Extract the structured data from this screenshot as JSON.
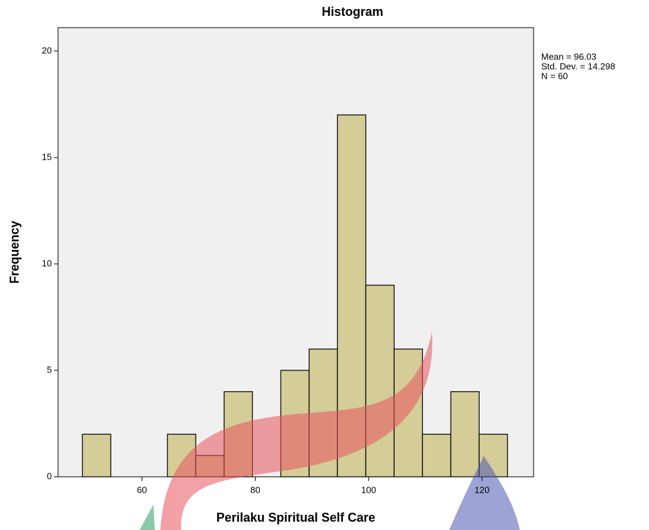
{
  "chart_data": {
    "type": "histogram",
    "title": "Histogram",
    "x_label": "Perilaku Spiritual Self Care",
    "y_label": "Frequency",
    "bins": [
      49.5,
      54.5,
      59.5,
      64.5,
      69.5,
      74.5,
      79.5,
      84.5,
      89.5,
      94.5,
      99.5,
      104.5,
      109.5,
      114.5,
      119.5,
      124.5
    ],
    "counts": [
      2,
      0,
      0,
      2,
      1,
      4,
      0,
      5,
      6,
      17,
      9,
      6,
      2,
      4,
      2
    ],
    "color": "#d4cd98",
    "xlim": [
      45.2,
      129.1
    ],
    "xticks": [
      60,
      80,
      100,
      120
    ],
    "ylim": [
      0,
      21.1
    ],
    "yticks": [
      0,
      5,
      10,
      15,
      20
    ],
    "grid": false,
    "stats": [
      "Mean = 96.03",
      "Std. Dev. = 14.298",
      "N = 60"
    ]
  }
}
